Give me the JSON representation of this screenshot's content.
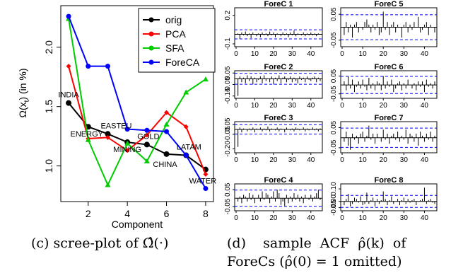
{
  "scree": {
    "type": "line",
    "ylabel": "Ω(x_t) (in %)",
    "ylabel_parts": {
      "omega": "Ω",
      "arg": "(x",
      "sub": "t",
      "rest": ") (in %)"
    },
    "xlabel": "Component",
    "xlim": [
      0.6,
      8.4
    ],
    "ylim": [
      0.7,
      2.35
    ],
    "xticks": [
      2,
      4,
      6,
      8
    ],
    "yticks": [
      1.0,
      1.5,
      2.0
    ],
    "x": [
      1,
      2,
      3,
      4,
      5,
      6,
      7,
      8
    ],
    "series": [
      {
        "name": "orig",
        "color": "#000000",
        "values": [
          1.53,
          1.33,
          1.27,
          1.2,
          1.18,
          1.1,
          1.09,
          0.97
        ]
      },
      {
        "name": "PCA",
        "color": "#ff0000",
        "values": [
          1.84,
          1.23,
          1.24,
          1.13,
          1.26,
          1.45,
          1.33,
          0.93
        ]
      },
      {
        "name": "SFA",
        "color": "#00cc00",
        "values": [
          2.24,
          1.22,
          0.84,
          1.19,
          1.04,
          1.35,
          1.62,
          1.73
        ]
      },
      {
        "name": "ForeCA",
        "color": "#0000ff",
        "values": [
          2.26,
          1.84,
          1.84,
          1.31,
          1.3,
          1.29,
          1.09,
          0.81
        ]
      }
    ],
    "point_labels": [
      "INDIA",
      "ENERGY",
      "EASTEU",
      "MINING",
      "GOLD",
      "CHINA",
      "LATAM",
      "WATER"
    ]
  },
  "acf": {
    "type": "bar",
    "lags_max": 45,
    "xticks": [
      0,
      10,
      20,
      30,
      40
    ],
    "panels": [
      {
        "title": "ForeC 1",
        "ylim": [
          -0.13,
          0.28
        ],
        "yticks": [
          "0.2",
          "-0.1"
        ],
        "ytick_values": [
          0.2,
          -0.1
        ],
        "band": 0.048,
        "values": [
          0.01,
          -0.05,
          0.02,
          -0.01,
          0.03,
          -0.02,
          0.01,
          -0.04,
          0.02,
          0.0,
          -0.02,
          0.01,
          -0.03,
          0.02,
          -0.01,
          0.01,
          -0.02,
          0.03,
          -0.01,
          0.02,
          -0.03,
          0.01,
          0.0,
          -0.02,
          0.02,
          -0.01,
          0.01,
          -0.03,
          0.02,
          -0.01,
          0.04,
          -0.02,
          0.01,
          0.0,
          -0.01,
          0.02,
          -0.02,
          0.01,
          -0.01,
          0.02,
          -0.01,
          0.01,
          -0.02,
          0.01,
          0.0
        ]
      },
      {
        "title": "ForeC 2",
        "ylim": [
          -0.17,
          0.07
        ],
        "yticks": [
          "0.05",
          "-0.05",
          "-0.15"
        ],
        "ytick_values": [
          0.05,
          -0.05,
          -0.15
        ],
        "band": 0.048,
        "values": [
          -0.15,
          0.02,
          -0.03,
          0.01,
          -0.04,
          0.03,
          -0.02,
          0.02,
          -0.05,
          0.01,
          -0.03,
          -0.01,
          0.02,
          -0.04,
          0.03,
          -0.02,
          0.0,
          -0.03,
          0.02,
          -0.05,
          0.01,
          -0.02,
          0.03,
          -0.04,
          0.01,
          0.02,
          -0.03,
          -0.01,
          0.02,
          -0.03,
          0.01,
          -0.02,
          -0.04,
          0.02,
          -0.01,
          0.01,
          -0.03,
          0.02,
          -0.01,
          -0.02,
          0.01,
          0.02,
          -0.03,
          0.01,
          -0.02
        ]
      },
      {
        "title": "ForeC 3",
        "ylim": [
          -0.24,
          0.08
        ],
        "yticks": [
          "0.05",
          "-0.05",
          "-0.20"
        ],
        "ytick_values": [
          0.05,
          -0.05,
          -0.2
        ],
        "band": 0.048,
        "values": [
          -0.18,
          0.02,
          -0.03,
          0.01,
          0.0,
          -0.02,
          0.01,
          -0.01,
          0.02,
          -0.03,
          0.01,
          0.0,
          0.02,
          -0.02,
          0.01,
          -0.01,
          0.03,
          -0.02,
          0.01,
          0.0,
          -0.01,
          0.02,
          -0.02,
          0.01,
          0.0,
          -0.03,
          0.02,
          0.0,
          -0.01,
          0.01,
          -0.02,
          0.02,
          0.01,
          -0.01,
          0.0,
          0.02,
          -0.02,
          0.01,
          -0.01,
          0.0,
          0.02,
          -0.01,
          0.01,
          -0.02,
          0.01
        ]
      },
      {
        "title": "ForeC 4",
        "ylim": [
          -0.075,
          0.085
        ],
        "yticks": [
          "0.05",
          "-0.05"
        ],
        "ytick_values": [
          0.05,
          -0.05
        ],
        "band": 0.048,
        "values": [
          -0.02,
          0.01,
          -0.03,
          0.02,
          0.01,
          -0.02,
          0.03,
          -0.01,
          0.02,
          -0.03,
          0.0,
          0.02,
          -0.02,
          0.04,
          -0.01,
          0.03,
          0.02,
          -0.03,
          0.01,
          0.04,
          -0.02,
          0.05,
          0.03,
          -0.04,
          -0.02,
          -0.05,
          0.02,
          -0.03,
          0.01,
          -0.02,
          0.03,
          -0.01,
          0.02,
          -0.02,
          0.01,
          -0.03,
          0.02,
          0.0,
          -0.01,
          0.02,
          -0.02,
          0.01,
          0.03,
          0.05,
          -0.01
        ]
      },
      {
        "title": "ForeC 5",
        "ylim": [
          -0.075,
          0.075
        ],
        "yticks": [
          "0.05",
          "-0.05"
        ],
        "ytick_values": [
          0.05,
          -0.05
        ],
        "band": 0.048,
        "values": [
          -0.03,
          0.02,
          -0.02,
          0.01,
          -0.04,
          0.01,
          0.02,
          -0.02,
          0.0,
          -0.01,
          0.02,
          0.03,
          0.01,
          -0.02,
          0.01,
          -0.01,
          0.02,
          -0.03,
          -0.02,
          0.06,
          -0.01,
          0.02,
          -0.03,
          0.01,
          0.02,
          -0.02,
          0.01,
          0.0,
          -0.04,
          0.01,
          0.02,
          -0.02,
          0.01,
          -0.01,
          0.02,
          0.0,
          0.04,
          -0.02,
          -0.01,
          0.01,
          0.02,
          -0.03,
          0.01,
          0.0,
          -0.02
        ]
      },
      {
        "title": "ForeC 6",
        "ylim": [
          -0.075,
          0.08
        ],
        "yticks": [
          "0.05",
          "-0.05"
        ],
        "ytick_values": [
          0.05,
          -0.05
        ],
        "band": 0.048,
        "values": [
          0.02,
          -0.03,
          0.05,
          -0.02,
          0.03,
          -0.04,
          -0.01,
          0.02,
          -0.02,
          0.03,
          -0.01,
          -0.03,
          0.04,
          -0.02,
          0.01,
          -0.03,
          0.02,
          0.01,
          -0.03,
          0.05,
          -0.02,
          0.02,
          -0.01,
          0.03,
          -0.04,
          -0.02,
          0.01,
          0.02,
          -0.03,
          0.01,
          -0.02,
          0.03,
          0.0,
          -0.02,
          0.01,
          -0.03,
          0.02,
          -0.01,
          0.02,
          -0.04,
          0.03,
          -0.01,
          0.01,
          -0.02,
          0.02
        ]
      },
      {
        "title": "ForeC 7",
        "ylim": [
          -0.075,
          0.08
        ],
        "yticks": [
          "0.05",
          "-0.05"
        ],
        "ytick_values": [
          0.05,
          -0.05
        ],
        "band": 0.048,
        "values": [
          -0.02,
          0.03,
          -0.04,
          -0.06,
          0.02,
          -0.01,
          0.01,
          -0.03,
          0.02,
          0.03,
          -0.02,
          0.01,
          0.06,
          -0.01,
          0.02,
          -0.03,
          0.02,
          0.0,
          -0.02,
          0.04,
          -0.01,
          0.02,
          -0.03,
          0.01,
          0.02,
          -0.01,
          0.03,
          -0.02,
          0.01,
          -0.01,
          0.04,
          -0.03,
          0.02,
          0.01,
          -0.02,
          0.02,
          -0.04,
          0.03,
          0.01,
          -0.02,
          0.02,
          -0.01,
          0.03,
          -0.02,
          0.01
        ]
      },
      {
        "title": "ForeC 8",
        "ylim": [
          -0.075,
          0.14
        ],
        "yticks": [
          "0.10",
          "0.00",
          "-0.05"
        ],
        "ytick_values": [
          0.1,
          0.0,
          -0.05
        ],
        "band": 0.048,
        "values": [
          -0.03,
          0.02,
          0.06,
          -0.04,
          -0.02,
          0.03,
          0.02,
          -0.01,
          0.04,
          -0.03,
          -0.02,
          0.07,
          -0.02,
          0.01,
          0.03,
          -0.04,
          0.02,
          -0.02,
          0.01,
          0.08,
          0.02,
          -0.03,
          0.01,
          0.04,
          -0.02,
          0.0,
          0.02,
          -0.03,
          0.01,
          0.03,
          -0.02,
          0.02,
          -0.01,
          0.01,
          0.02,
          -0.03,
          0.0,
          0.01,
          0.02,
          0.11,
          -0.02,
          0.01,
          0.02,
          -0.01,
          -0.02
        ]
      }
    ]
  },
  "captions": {
    "c": "(c)  scree-plot of Ω̂(·)",
    "d_line1": "(d)    sample  ACF  ρ̂(k)  of",
    "d_line2": "ForeCs (ρ̂(0) = 1 omitted)"
  }
}
